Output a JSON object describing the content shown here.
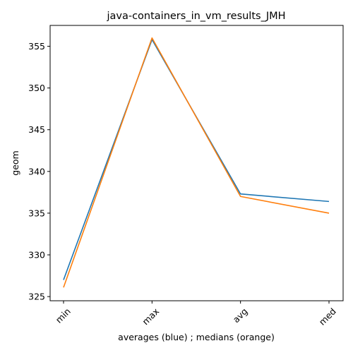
{
  "chart_data": {
    "type": "line",
    "title": "java-containers_in_vm_results_JMH",
    "xlabel": "averages (blue) ; medians (orange)",
    "ylabel": "geom",
    "categories": [
      "min",
      "max",
      "avg",
      "med"
    ],
    "yticks": [
      325,
      330,
      335,
      340,
      345,
      350,
      355
    ],
    "ylim": [
      324.5,
      357.5
    ],
    "grid": false,
    "series": [
      {
        "color": "#1f77b4",
        "values": [
          327.0,
          355.8,
          337.3,
          336.4
        ]
      },
      {
        "color": "#ff7f0e",
        "values": [
          326.1,
          356.0,
          337.0,
          335.0
        ]
      }
    ]
  }
}
